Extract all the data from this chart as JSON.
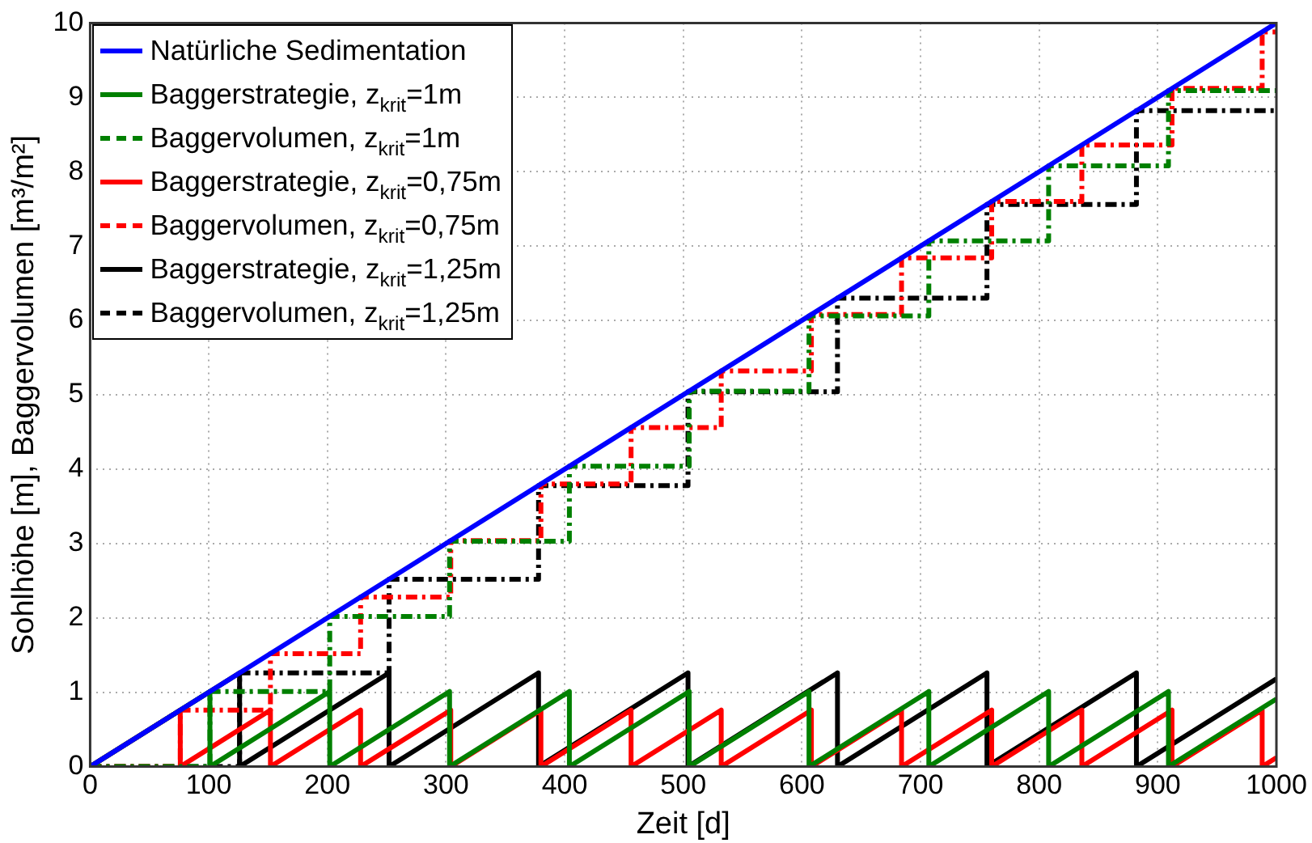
{
  "chart_data": {
    "type": "line",
    "xlabel": "Zeit [d]",
    "ylabel": "Sohlhöhe [m], Baggervolumen [m³/m²]",
    "xlim": [
      0,
      1000
    ],
    "xticks": [
      0,
      100,
      200,
      300,
      400,
      500,
      600,
      700,
      800,
      900,
      1000
    ],
    "ylim": [
      0,
      10
    ],
    "yticks": [
      0,
      1,
      2,
      3,
      4,
      5,
      6,
      7,
      8,
      9,
      10
    ],
    "grid": true,
    "legend": "top left",
    "marker": "none",
    "series": [
      {
        "name": "Natürliche Sedimentation",
        "color": "#0000ff",
        "line_style": "solid",
        "x": [
          0,
          1000
        ],
        "values": [
          0,
          10
        ]
      },
      {
        "name": "Baggerstrategie, z$_{krit}$=1m",
        "color": "#008000",
        "line_style": "solid",
        "x": [
          0,
          101,
          101,
          202,
          202,
          303,
          303,
          404,
          404,
          505,
          505,
          606,
          606,
          707,
          707,
          808,
          808,
          909,
          909,
          1000
        ],
        "values": [
          0,
          1.01,
          0,
          1.01,
          0,
          1.01,
          0,
          1.01,
          0,
          1.01,
          0,
          1.01,
          0,
          1.01,
          0,
          1.01,
          0,
          1.01,
          0,
          0.91
        ]
      },
      {
        "name": "Baggervolumen, z$_{krit}$=1m",
        "color": "#008000",
        "line_style": "dashed",
        "x": [
          0,
          101,
          101,
          202,
          202,
          303,
          303,
          404,
          404,
          505,
          505,
          606,
          606,
          707,
          707,
          808,
          808,
          909,
          909,
          1000
        ],
        "values": [
          0,
          0,
          1.01,
          1.01,
          2.02,
          2.02,
          3.03,
          3.03,
          4.04,
          4.04,
          5.05,
          5.05,
          6.06,
          6.06,
          7.07,
          7.07,
          8.08,
          8.08,
          9.09,
          9.09
        ]
      },
      {
        "name": "Baggerstrategie, z$_{krit}$=0,75m",
        "color": "#ff0000",
        "line_style": "solid",
        "x": [
          0,
          76,
          76,
          152,
          152,
          228,
          228,
          304,
          304,
          380,
          380,
          456,
          456,
          532,
          532,
          608,
          608,
          684,
          684,
          760,
          760,
          836,
          836,
          912,
          912,
          988,
          988,
          1000
        ],
        "values": [
          0,
          0.76,
          0,
          0.76,
          0,
          0.76,
          0,
          0.76,
          0,
          0.76,
          0,
          0.76,
          0,
          0.76,
          0,
          0.76,
          0,
          0.76,
          0,
          0.76,
          0,
          0.76,
          0,
          0.76,
          0,
          0.76,
          0,
          0.12
        ]
      },
      {
        "name": "Baggervolumen, z$_{krit}$=0,75m",
        "color": "#ff0000",
        "line_style": "dashed",
        "x": [
          0,
          76,
          76,
          152,
          152,
          228,
          228,
          304,
          304,
          380,
          380,
          456,
          456,
          532,
          532,
          608,
          608,
          684,
          684,
          760,
          760,
          836,
          836,
          912,
          912,
          988,
          988,
          1000
        ],
        "values": [
          0,
          0,
          0.76,
          0.76,
          1.52,
          1.52,
          2.28,
          2.28,
          3.04,
          3.04,
          3.8,
          3.8,
          4.56,
          4.56,
          5.32,
          5.32,
          6.08,
          6.08,
          6.84,
          6.84,
          7.6,
          7.6,
          8.36,
          8.36,
          9.12,
          9.12,
          9.88,
          9.88
        ]
      },
      {
        "name": "Baggerstrategie, z$_{krit}$=1,25m",
        "color": "#000000",
        "line_style": "solid",
        "x": [
          0,
          126,
          126,
          252,
          252,
          378,
          378,
          504,
          504,
          630,
          630,
          756,
          756,
          882,
          882,
          1000
        ],
        "values": [
          0,
          1.26,
          0,
          1.26,
          0,
          1.26,
          0,
          1.26,
          0,
          1.26,
          0,
          1.26,
          0,
          1.26,
          0,
          1.18
        ]
      },
      {
        "name": "Baggervolumen, z$_{krit}$=1,25m",
        "color": "#000000",
        "line_style": "dashed",
        "x": [
          0,
          126,
          126,
          252,
          252,
          378,
          378,
          504,
          504,
          630,
          630,
          756,
          756,
          882,
          882,
          1000
        ],
        "values": [
          0,
          0,
          1.26,
          1.26,
          2.52,
          2.52,
          3.78,
          3.78,
          5.04,
          5.04,
          6.3,
          6.3,
          7.56,
          7.56,
          8.82,
          8.82
        ]
      }
    ]
  }
}
